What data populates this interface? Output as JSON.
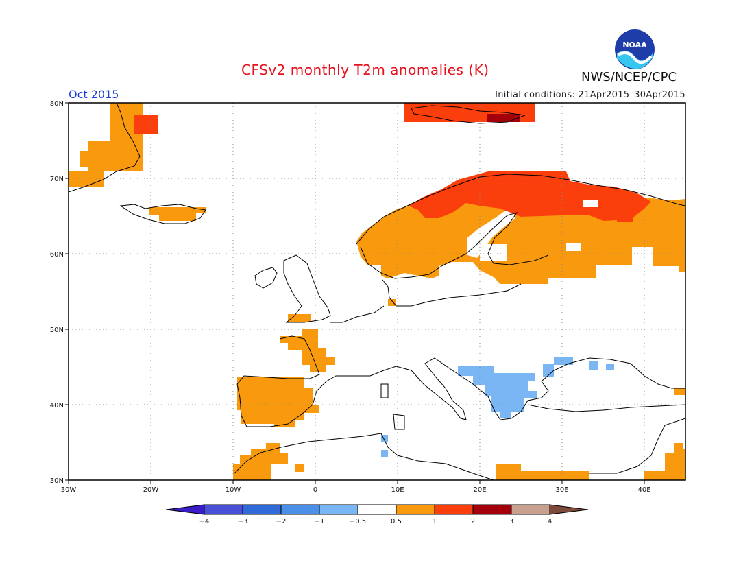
{
  "header": {
    "title": "CFSv2 monthly T2m anomalies (K)",
    "month": "Oct 2015",
    "initial_conditions": "Initial conditions: 21Apr2015–30Apr2015",
    "agency": "NWS/NCEP/CPC",
    "logo_text": "NOAA"
  },
  "map": {
    "lat_labels": [
      "80N",
      "70N",
      "60N",
      "50N",
      "40N",
      "30N"
    ],
    "lon_labels": [
      "30W",
      "20W",
      "10W",
      "0",
      "10E",
      "20E",
      "30E",
      "40E"
    ],
    "lat_range": [
      30,
      80
    ],
    "lon_range": [
      -30,
      45
    ]
  },
  "colorbar": {
    "tick_labels": [
      "−4",
      "−3",
      "−2",
      "−1",
      "−0.5",
      "0.5",
      "1",
      "2",
      "3",
      "4"
    ],
    "colors": [
      "#3a1cc8",
      "#4a4fd8",
      "#2f6ad8",
      "#4b90e8",
      "#7ab6f4",
      "#ffffff",
      "#f99a0e",
      "#fb3f0c",
      "#a3000b",
      "#c9a08d",
      "#7d4a3c"
    ]
  },
  "legend_colors": {
    "weak_warm": "#f99a0e",
    "warm": "#fb3f0c",
    "strong_warm": "#a3000b",
    "weak_cold": "#7ab6f4"
  }
}
